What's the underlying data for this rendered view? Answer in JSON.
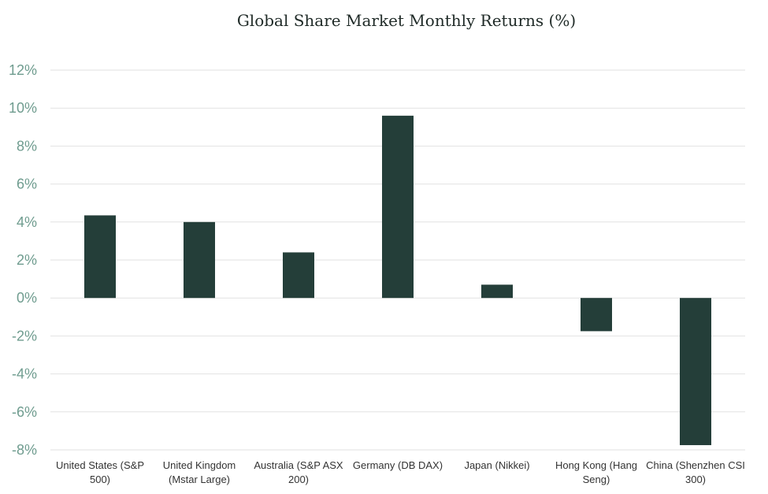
{
  "chart_data": {
    "type": "bar",
    "title": "Global Share Market Monthly Returns (%)",
    "xlabel": "",
    "ylabel": "",
    "ylim": [
      -8,
      12
    ],
    "y_ticks": [
      12,
      10,
      8,
      6,
      4,
      2,
      0,
      -2,
      -4,
      -6,
      -8
    ],
    "y_tick_labels": [
      "12%",
      "10%",
      "8%",
      "6%",
      "4%",
      "2%",
      "0%",
      "-2%",
      "-4%",
      "-6%",
      "-8%"
    ],
    "grid": true,
    "categories": [
      [
        "United States (S&P",
        "500)"
      ],
      [
        "United Kingdom",
        "(Mstar Large)"
      ],
      [
        "Australia (S&P ASX",
        "200)"
      ],
      [
        "Germany (DB DAX)"
      ],
      [
        "Japan (Nikkei)"
      ],
      [
        "Hong Kong (Hang",
        "Seng)"
      ],
      [
        "China (Shenzhen CSI",
        "300)"
      ]
    ],
    "values": [
      4.35,
      4.0,
      2.4,
      9.6,
      0.7,
      -1.75,
      -7.75
    ],
    "colors": {
      "bar": "#243e39",
      "y_tick_text": "#6f9c8f",
      "x_tick_text": "#333333",
      "grid": "#e2e2e2"
    }
  }
}
